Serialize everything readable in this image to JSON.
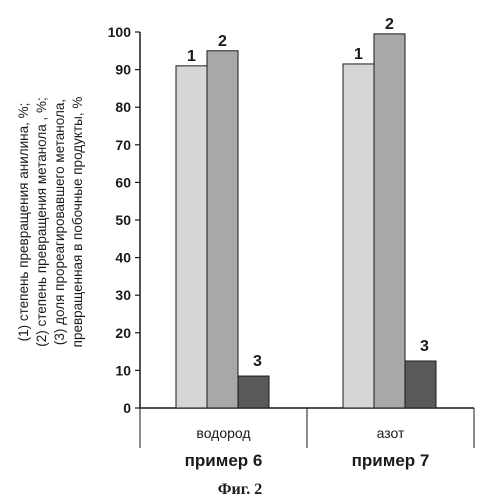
{
  "chart_data": {
    "type": "bar",
    "categories": [
      "водород",
      "азот"
    ],
    "group_labels": [
      "пример 6",
      "пример 7"
    ],
    "series": [
      {
        "name": "1",
        "values": [
          91,
          91.5
        ],
        "color": "#d6d6d6"
      },
      {
        "name": "2",
        "values": [
          95,
          99.5
        ],
        "color": "#a8a8a8"
      },
      {
        "name": "3",
        "values": [
          8.5,
          12.5
        ],
        "color": "#595959"
      }
    ],
    "ylim": [
      0,
      100
    ],
    "yticks": [
      "0",
      "10",
      "20",
      "30",
      "40",
      "50",
      "60",
      "70",
      "80",
      "90",
      "100"
    ],
    "ylabel_lines": [
      "(1) степень превращения анилина, %;",
      "(2) степень превращения метанола , %;",
      "(3) доля прореагировавшего метанола,",
      "превращенная в побочные продукты, %"
    ],
    "grid": false,
    "legend": "none"
  },
  "caption": "Фиг. 2"
}
